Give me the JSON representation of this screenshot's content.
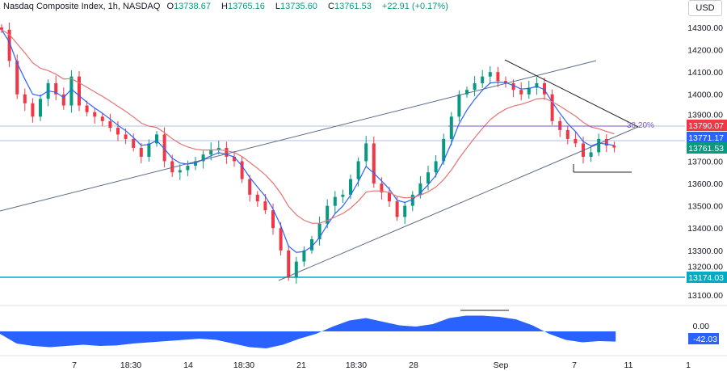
{
  "header": {
    "symbol": "Nasdaq Composite Index, 1h, NASDAQ",
    "open_label": "O",
    "open": "13738.67",
    "high_label": "H",
    "high": "13765.16",
    "low_label": "L",
    "low": "13735.60",
    "close_label": "C",
    "close": "13761.53",
    "change": "+22.91 (+0.17%)"
  },
  "currency": "USD",
  "colors": {
    "up": "#089981",
    "down": "#f23645",
    "fast_ma": "#2962ff",
    "slow_ma": "#e57373",
    "oscillator": "#2962ff",
    "support": "#00acc1",
    "fib": "#7e57c2"
  },
  "chart_data": {
    "type": "candlestick",
    "ylim": [
      13050,
      14350
    ],
    "y_ticks": [
      "14300.00",
      "14200.00",
      "14100.00",
      "14000.00",
      "13900.00",
      "13700.00",
      "13600.00",
      "13500.00",
      "13400.00",
      "13300.00",
      "13200.00",
      "13100.00"
    ],
    "x_ticks": [
      "7",
      "18:30",
      "14",
      "18:30",
      "21",
      "18:30",
      "28",
      "Sep",
      "7",
      "11",
      "1"
    ],
    "closes": [
      14290,
      14150,
      14000,
      13960,
      13900,
      13980,
      14050,
      14000,
      13950,
      14080,
      13950,
      13920,
      13900,
      13880,
      13850,
      13820,
      13800,
      13760,
      13720,
      13780,
      13820,
      13700,
      13650,
      13660,
      13680,
      13700,
      13730,
      13750,
      13760,
      13720,
      13700,
      13620,
      13550,
      13520,
      13480,
      13400,
      13300,
      13180,
      13250,
      13300,
      13350,
      13420,
      13500,
      13540,
      13550,
      13620,
      13700,
      13780,
      13600,
      13560,
      13520,
      13450,
      13500,
      13550,
      13600,
      13650,
      13700,
      13800,
      13900,
      14000,
      14020,
      14050,
      14080,
      14100,
      14060,
      14050,
      14020,
      14000,
      14030,
      14050,
      14000,
      13880,
      13840,
      13800,
      13780,
      13720,
      13740,
      13800,
      13770,
      13761.53
    ],
    "price_badges": [
      {
        "value": "13790.07",
        "color": "#f23645"
      },
      {
        "value": "13771.17",
        "color": "#2962ff"
      },
      {
        "value": "13761.53",
        "color": "#089981"
      },
      {
        "value": "13174.03",
        "color": "#00acc1"
      }
    ],
    "fib_label": "38.20%",
    "oscillator": {
      "zero_label": "0.00",
      "last_label": "-42.03",
      "values": [
        -10,
        -50,
        -60,
        -65,
        -60,
        -55,
        -60,
        -58,
        -50,
        -45,
        -40,
        -35,
        -30,
        -35,
        -50,
        -65,
        -70,
        -55,
        -30,
        -10,
        20,
        45,
        55,
        40,
        25,
        20,
        30,
        55,
        65,
        65,
        60,
        50,
        25,
        -10,
        -35,
        -45,
        -40,
        -42
      ]
    }
  }
}
